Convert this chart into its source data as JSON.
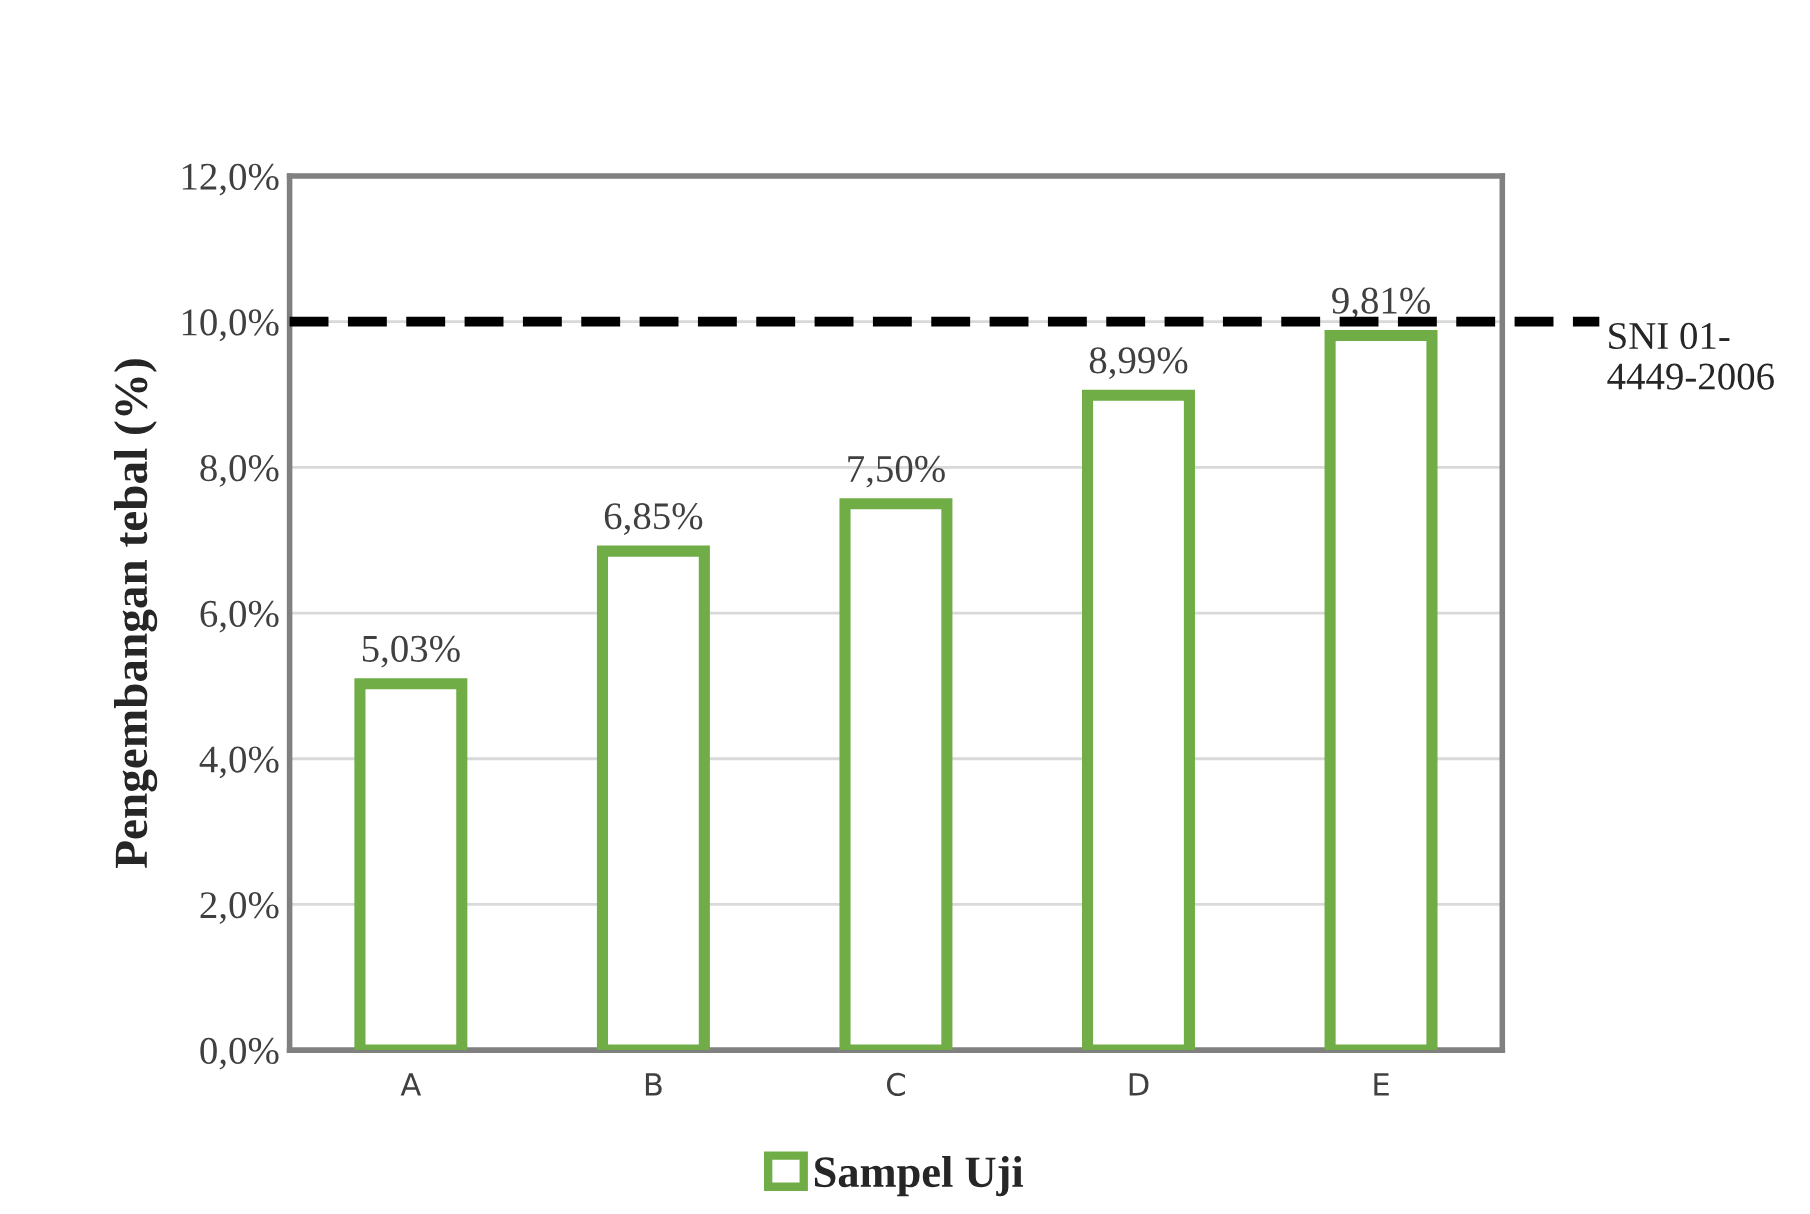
{
  "chart_data": {
    "type": "bar",
    "categories": [
      "A",
      "B",
      "C",
      "D",
      "E"
    ],
    "series": [
      {
        "name": "Sampel Uji",
        "color": "#70ad47",
        "values": [
          5.03,
          6.85,
          7.5,
          8.99,
          9.81
        ],
        "value_labels": [
          "5,03%",
          "6,85%",
          "7,50%",
          "8,99%",
          "9,81%"
        ]
      }
    ],
    "ylabel": "Pengembangan tebal (%)",
    "ylim": [
      0,
      12
    ],
    "yticks": [
      {
        "value": 0,
        "label": "0,0%"
      },
      {
        "value": 2,
        "label": "2,0%"
      },
      {
        "value": 4,
        "label": "4,0%"
      },
      {
        "value": 6,
        "label": "6,0%"
      },
      {
        "value": 8,
        "label": "8,0%"
      },
      {
        "value": 10,
        "label": "10,0%"
      },
      {
        "value": 12,
        "label": "12,0%"
      }
    ],
    "ref_lines": [
      {
        "axis": "y",
        "value": 10,
        "label": "SNI 01-\n4449-2006",
        "color": "#000000",
        "line_style": "dashed"
      }
    ],
    "grid": "y",
    "legend": "bottom"
  }
}
